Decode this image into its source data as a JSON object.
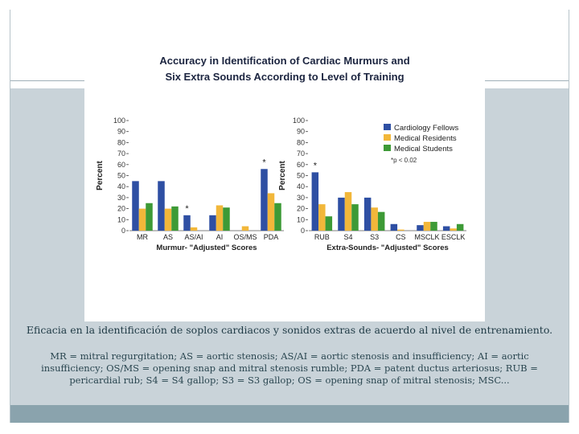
{
  "slide": {
    "caption": "Eficacia en la identificación de soplos cardiacos y sonidos extras de acuerdo al nivel de entrenamiento.",
    "abbreviations": "MR = mitral regurgitation; AS = aortic stenosis; AS/AI = aortic stenosis and insufficiency; AI = aortic insufficiency; OS/MS = opening snap and mitral stenosis rumble; PDA = patent ductus arteriosus; RUB = pericardial rub; S4 = S4 gallop; S3 = S3 gallop; OS = opening snap of mitral stenosis; MSC...",
    "colors": {
      "top": "#ffffff",
      "band": "#c9d3d9",
      "bottom": "#8aa3ad"
    }
  },
  "figure": {
    "title_line1": "Accuracy in Identification of Cardiac Murmurs and",
    "title_line2": "Six Extra Sounds According to Level of Training"
  },
  "chart_data": [
    {
      "type": "bar",
      "categories": [
        "MR",
        "AS",
        "AS/AI",
        "AI",
        "OS/MS",
        "PDA"
      ],
      "series": [
        {
          "name": "Cardiology Fellows",
          "values": [
            45,
            45,
            14,
            14,
            0,
            56
          ],
          "color": "#2e4fa3"
        },
        {
          "name": "Medical Residents",
          "values": [
            20,
            20,
            3,
            23,
            4,
            34
          ],
          "color": "#f2b73a"
        },
        {
          "name": "Medical Students",
          "values": [
            25,
            22,
            0,
            21,
            0,
            25
          ],
          "color": "#3d9a36"
        }
      ],
      "xlabel": "Murmur- \"Adjusted\" Scores",
      "ylabel": "Percent",
      "ylim": [
        0,
        100
      ],
      "yticks": [
        0,
        10,
        20,
        30,
        40,
        50,
        60,
        70,
        80,
        90,
        100
      ],
      "annotations": [
        {
          "category": "AS/AI",
          "text": "*"
        },
        {
          "category": "PDA",
          "text": "*"
        }
      ]
    },
    {
      "type": "bar",
      "categories": [
        "RUB",
        "S4",
        "S3",
        "CS",
        "MSCLK",
        "ESCLK"
      ],
      "series": [
        {
          "name": "Cardiology Fellows",
          "values": [
            53,
            30,
            30,
            6,
            5,
            4
          ],
          "color": "#2e4fa3"
        },
        {
          "name": "Medical Residents",
          "values": [
            24,
            35,
            21,
            1,
            8,
            2
          ],
          "color": "#f2b73a"
        },
        {
          "name": "Medical Students",
          "values": [
            13,
            24,
            17,
            0,
            8,
            6
          ],
          "color": "#3d9a36"
        }
      ],
      "xlabel": "Extra-Sounds- \"Adjusted\" Scores",
      "ylabel": "Percent",
      "ylim": [
        0,
        100
      ],
      "yticks": [
        0,
        10,
        20,
        30,
        40,
        50,
        60,
        70,
        80,
        90,
        100
      ],
      "annotations": [
        {
          "category": "RUB",
          "text": "*"
        }
      ],
      "legend": {
        "position": "top-right",
        "items": [
          "Cardiology Fellows",
          "Medical Residents",
          "Medical Students"
        ],
        "note": "*p < 0.02"
      }
    }
  ]
}
